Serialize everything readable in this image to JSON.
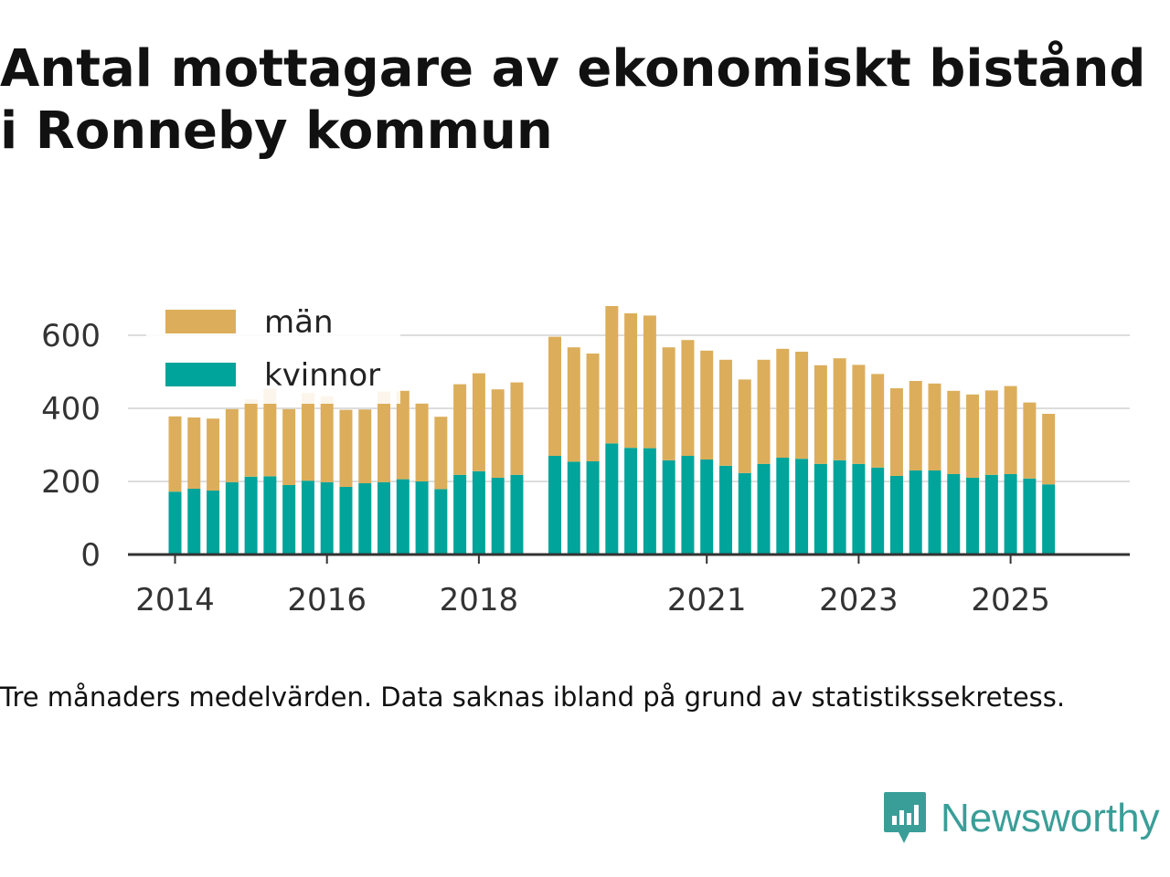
{
  "title": "Antal mottagare av ekonomiskt bistånd i Ronneby kommun",
  "note": "Tre månaders medelvärden. Data saknas ibland på grund av statistikssekretess.",
  "brand": {
    "name": "Newsworthy",
    "color": "#3a9e98"
  },
  "colors": {
    "man": "#dcae5b",
    "kvinnor": "#00a49a",
    "axis": "#333333",
    "grid": "#dddddd"
  },
  "chart_data": {
    "type": "bar",
    "stacked": true,
    "title": "Antal mottagare av ekonomiskt bistånd i Ronneby kommun",
    "xlabel": "",
    "ylabel": "",
    "ylim": [
      0,
      700
    ],
    "yticks": [
      0,
      200,
      400,
      600
    ],
    "xticks": [
      "2014",
      "2016",
      "2018",
      "2021",
      "2023",
      "2025"
    ],
    "legend": {
      "position": "top-left",
      "entries": [
        "män",
        "kvinnor"
      ]
    },
    "categories": [
      "2014-Q2",
      "2014-Q3",
      "2014-Q4",
      "2015-Q1",
      "2015-Q2",
      "2015-Q3",
      "2015-Q4",
      "2016-Q1",
      "2016-Q2",
      "2016-Q3",
      "2016-Q4",
      "2017-Q1",
      "2017-Q2",
      "2017-Q3",
      "2017-Q4",
      "2018-Q1",
      "2018-Q2",
      "2018-Q3",
      "2018-Q4",
      "2019-Q1",
      "2019-Q2",
      "2019-Q3",
      "2019-Q4",
      "2020-Q1",
      "2020-Q2",
      "2020-Q3",
      "2020-Q4",
      "2021-Q1",
      "2021-Q2",
      "2021-Q3",
      "2021-Q4",
      "2022-Q1",
      "2022-Q2",
      "2022-Q3",
      "2022-Q4",
      "2023-Q1",
      "2023-Q2",
      "2023-Q3",
      "2023-Q4",
      "2024-Q1",
      "2024-Q2",
      "2024-Q3",
      "2024-Q4",
      "2025-Q1",
      "2025-Q2",
      "2025-Q3",
      "2025-Q4"
    ],
    "series": [
      {
        "name": "kvinnor",
        "values": [
          172,
          180,
          175,
          198,
          213,
          214,
          190,
          202,
          198,
          185,
          195,
          198,
          206,
          200,
          179,
          218,
          228,
          210,
          218,
          null,
          270,
          254,
          255,
          304,
          292,
          291,
          258,
          270,
          260,
          243,
          223,
          248,
          265,
          262,
          248,
          258,
          248,
          238,
          215,
          230,
          230,
          220,
          210,
          218,
          220,
          208,
          192
        ]
      },
      {
        "name": "män",
        "values": [
          206,
          195,
          197,
          200,
          212,
          240,
          208,
          240,
          235,
          211,
          202,
          248,
          242,
          213,
          198,
          248,
          268,
          242,
          253,
          null,
          326,
          313,
          295,
          376,
          368,
          363,
          309,
          317,
          298,
          290,
          256,
          285,
          298,
          293,
          270,
          279,
          271,
          256,
          240,
          245,
          238,
          228,
          228,
          231,
          241,
          208,
          193
        ]
      }
    ]
  }
}
